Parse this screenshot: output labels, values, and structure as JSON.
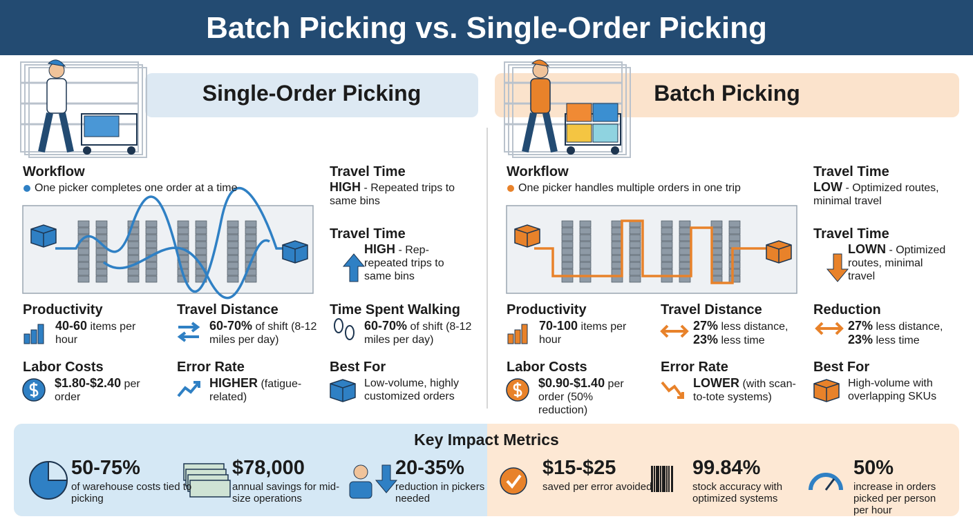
{
  "title": "Batch Picking vs. Single-Order Picking",
  "sections": [
    {
      "heading": "Single-Order Picking",
      "accent": "#2f80c4",
      "workflow": {
        "label": "Workflow",
        "text": "One picker completes one order at a time"
      },
      "items": [
        {
          "label": "Travel Time",
          "runs": [
            {
              "bold": "HIGH"
            },
            {
              "plain": "- Repeated trips to same bins"
            }
          ]
        },
        {
          "label": "Travel Time",
          "runs": [
            {
              "bold": "HIGH"
            },
            {
              "plain": "- Rep- repeated trips to same bins"
            }
          ]
        },
        {
          "label": "Productivity",
          "runs": [
            {
              "bold": "40-60"
            },
            {
              "plain": "items per hour"
            }
          ]
        },
        {
          "label": "Travel Distance",
          "runs": [
            {
              "bold": "60-70%"
            },
            {
              "plain": "of shift (8-12 miles per day)"
            }
          ]
        },
        {
          "label": "Time Spent Walking",
          "runs": [
            {
              "bold": "60-70%"
            },
            {
              "plain": "of shift (8-12 miles per day)"
            }
          ]
        },
        {
          "label": "Labor Costs",
          "runs": [
            {
              "bold": "$1.80-$2.40"
            },
            {
              "plain": "per order"
            }
          ]
        },
        {
          "label": "Error Rate",
          "runs": [
            {
              "bold": "HIGHER"
            },
            {
              "plain": "(fatigue-related)"
            }
          ]
        },
        {
          "label": "Best For",
          "runs": [
            {
              "plain": "Low-volume, highly customized orders"
            }
          ]
        }
      ]
    },
    {
      "heading": "Batch Picking",
      "accent": "#e8822a",
      "workflow": {
        "label": "Workflow",
        "text": "One picker handles multiple orders in one trip"
      },
      "items": [
        {
          "label": "Travel Time",
          "runs": [
            {
              "bold": "LOW"
            },
            {
              "plain": "- Optimized routes, minimal travel"
            }
          ]
        },
        {
          "label": "Travel Time",
          "runs": [
            {
              "bold": "LOWN"
            },
            {
              "plain": "- Optimized routes, minimal travel"
            }
          ]
        },
        {
          "label": "Productivity",
          "runs": [
            {
              "bold": "70-100"
            },
            {
              "plain": "items per hour"
            }
          ]
        },
        {
          "label": "Travel Distance",
          "runs": [
            {
              "bold": "27%"
            },
            {
              "plain": "less distance,"
            },
            {
              "bold": "23%"
            },
            {
              "plain": "less time"
            }
          ]
        },
        {
          "label": "Reduction",
          "runs": [
            {
              "bold": "27%"
            },
            {
              "plain": "less distance,"
            },
            {
              "bold": "23%"
            },
            {
              "plain": "less time"
            }
          ]
        },
        {
          "label": "Labor Costs",
          "runs": [
            {
              "bold": "$0.90-$1.40"
            },
            {
              "plain": "per order (50% reduction)"
            }
          ]
        },
        {
          "label": "Error Rate",
          "runs": [
            {
              "bold": "LOWER"
            },
            {
              "plain": "(with scan-to-tote systems)"
            }
          ]
        },
        {
          "label": "Best For",
          "runs": [
            {
              "plain": "High-volume with overlapping SKUs"
            }
          ]
        }
      ]
    }
  ],
  "key_metrics": {
    "title": "Key Impact Metrics",
    "items": [
      {
        "value": "50-75%",
        "text": "of warehouse costs tied to picking"
      },
      {
        "value": "$78,000",
        "text": "annual savings for mid-size operations"
      },
      {
        "value": "20-35%",
        "text": "reduction in pickers needed"
      },
      {
        "value": "$15-$25",
        "text": "saved per error avoided"
      },
      {
        "value": "99.84%",
        "text": "stock accuracy with optimized systems"
      },
      {
        "value": "50%",
        "text": "increase in orders picked per person per hour"
      }
    ]
  }
}
